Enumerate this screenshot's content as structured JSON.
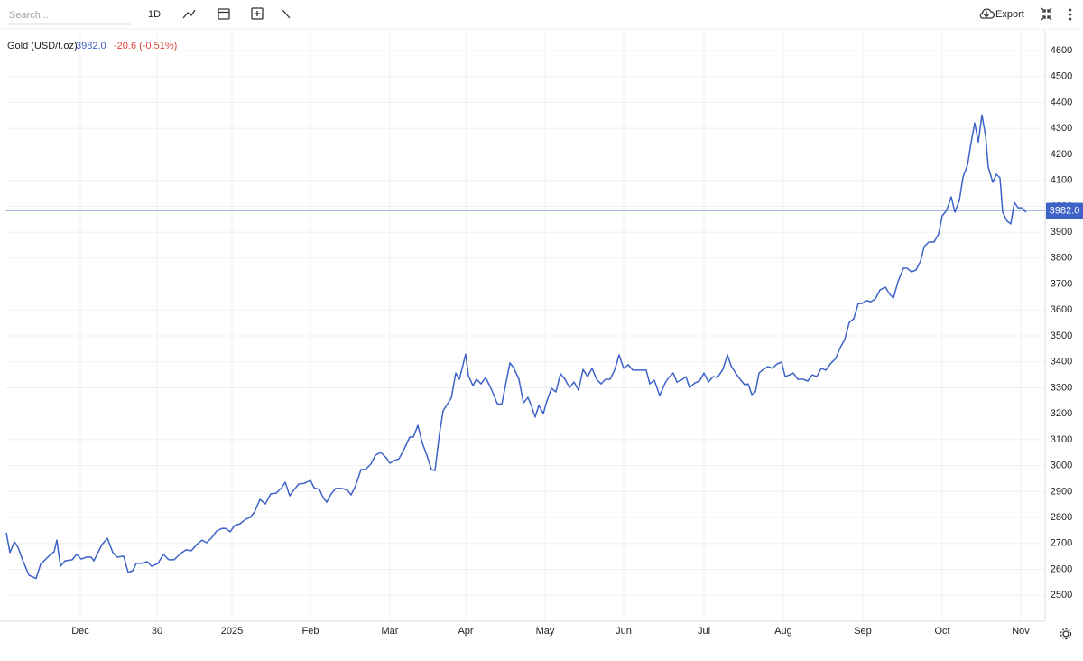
{
  "ui": {
    "search_placeholder": "Search...",
    "interval": "1D",
    "export": "Export",
    "change_label": "-20.6 (-0.51%)"
  },
  "chart_data": {
    "type": "line",
    "x": [
      0,
      4,
      9,
      13,
      18,
      25,
      33,
      38,
      48,
      53,
      56,
      60,
      65,
      73,
      78,
      83,
      89,
      94,
      97,
      101,
      106,
      112,
      118,
      123,
      130,
      135,
      140,
      144,
      150,
      156,
      161,
      168,
      174,
      180,
      186,
      193,
      199,
      205,
      211,
      217,
      222,
      228,
      233,
      239,
      243,
      248,
      253,
      259,
      265,
      270,
      275,
      281,
      287,
      293,
      299,
      305,
      309,
      314,
      319,
      324,
      330,
      337,
      341,
      347,
      351,
      355,
      360,
      365,
      372,
      378,
      382,
      387,
      393,
      398,
      404,
      409,
      415,
      421,
      425,
      430,
      435,
      441,
      447,
      451,
      456,
      461,
      466,
      471,
      475,
      480,
      484,
      489,
      493,
      498,
      502,
      509,
      512,
      517,
      521,
      526,
      531,
      536,
      540,
      544,
      549,
      553,
      558,
      562,
      568,
      573,
      578,
      582,
      586,
      590,
      595,
      599,
      604,
      609,
      614,
      619,
      624,
      629,
      634,
      639,
      644,
      649,
      654,
      659,
      664,
      669,
      674,
      679,
      684,
      689,
      694,
      699,
      704,
      709,
      713,
      718,
      724,
      730,
      734,
      739,
      743,
      748,
      753,
      757,
      763,
      768,
      773,
      778,
      783,
      788,
      794,
      799,
      803,
      808,
      813,
      818,
      822,
      826,
      830,
      834,
      839,
      844,
      849,
      854,
      859,
      863,
      868,
      872,
      877,
      883,
      888,
      893,
      898,
      903,
      908,
      913,
      919,
      924,
      929,
      934,
      939,
      944,
      948,
      953,
      958,
      963,
      968,
      974,
      979,
      983,
      988,
      994,
      998,
      1003,
      1008,
      1013,
      1017,
      1022,
      1028,
      1033,
      1037,
      1042,
      1047,
      1051,
      1056,
      1060,
      1065,
      1069,
      1073,
      1077,
      1081,
      1085,
      1088,
      1093,
      1097,
      1101,
      1104,
      1109,
      1113,
      1117,
      1121,
      1125,
      1130
    ],
    "series": [
      {
        "name": "Gold (USD/t.oz)",
        "color": "#3d62c8",
        "values": [
          2741,
          2665,
          2706,
          2685,
          2637,
          2578,
          2565,
          2620,
          2654,
          2668,
          2713,
          2612,
          2633,
          2637,
          2658,
          2640,
          2647,
          2647,
          2633,
          2661,
          2696,
          2720,
          2665,
          2647,
          2651,
          2588,
          2595,
          2623,
          2623,
          2630,
          2612,
          2623,
          2658,
          2637,
          2637,
          2661,
          2675,
          2672,
          2696,
          2713,
          2703,
          2724,
          2748,
          2758,
          2758,
          2745,
          2769,
          2776,
          2793,
          2800,
          2821,
          2870,
          2852,
          2891,
          2894,
          2915,
          2936,
          2884,
          2908,
          2929,
          2932,
          2943,
          2915,
          2908,
          2877,
          2859,
          2891,
          2912,
          2912,
          2905,
          2887,
          2922,
          2985,
          2985,
          3006,
          3040,
          3051,
          3030,
          3009,
          3020,
          3026,
          3065,
          3110,
          3110,
          3155,
          3086,
          3040,
          2985,
          2981,
          3124,
          3211,
          3239,
          3260,
          3357,
          3333,
          3430,
          3347,
          3308,
          3333,
          3315,
          3340,
          3305,
          3274,
          3239,
          3236,
          3308,
          3396,
          3378,
          3333,
          3242,
          3263,
          3228,
          3187,
          3232,
          3201,
          3249,
          3298,
          3284,
          3354,
          3333,
          3301,
          3322,
          3291,
          3371,
          3343,
          3375,
          3333,
          3315,
          3333,
          3333,
          3368,
          3427,
          3375,
          3389,
          3368,
          3368,
          3368,
          3368,
          3315,
          3329,
          3270,
          3319,
          3340,
          3357,
          3322,
          3329,
          3343,
          3301,
          3319,
          3326,
          3357,
          3322,
          3343,
          3340,
          3371,
          3427,
          3385,
          3357,
          3333,
          3312,
          3315,
          3274,
          3284,
          3357,
          3371,
          3382,
          3375,
          3392,
          3399,
          3343,
          3350,
          3357,
          3333,
          3333,
          3326,
          3350,
          3343,
          3375,
          3368,
          3392,
          3413,
          3455,
          3486,
          3552,
          3566,
          3625,
          3625,
          3636,
          3632,
          3643,
          3677,
          3688,
          3660,
          3646,
          3709,
          3761,
          3761,
          3747,
          3754,
          3789,
          3844,
          3862,
          3862,
          3893,
          3963,
          3984,
          4036,
          3977,
          4022,
          4112,
          4158,
          4245,
          4321,
          4247,
          4352,
          4272,
          4151,
          4092,
          4123,
          4109,
          3977,
          3942,
          3932,
          4015,
          3994,
          3994,
          3977
        ]
      }
    ],
    "reference_line": {
      "value": 3982,
      "label": "3982.0",
      "color": "#3d62c8"
    },
    "change_color": "#e0413a",
    "xlim": [
      -2,
      1151
    ],
    "xticks": [
      {
        "value": 82,
        "label": "Dec"
      },
      {
        "value": 167,
        "label": "30"
      },
      {
        "value": 250,
        "label": "2025"
      },
      {
        "value": 337,
        "label": "Feb"
      },
      {
        "value": 425,
        "label": "Mar"
      },
      {
        "value": 509,
        "label": "Apr"
      },
      {
        "value": 597,
        "label": "May"
      },
      {
        "value": 684,
        "label": "Jun"
      },
      {
        "value": 773,
        "label": "Jul"
      },
      {
        "value": 861,
        "label": "Aug"
      },
      {
        "value": 949,
        "label": "Sep"
      },
      {
        "value": 1037,
        "label": "Oct"
      },
      {
        "value": 1124,
        "label": "Nov"
      }
    ],
    "ylim": [
      2400,
      4680
    ],
    "yticks": [
      2500,
      2600,
      2700,
      2800,
      2900,
      3000,
      3100,
      3200,
      3300,
      3400,
      3500,
      3600,
      3700,
      3800,
      3900,
      4000,
      4100,
      4200,
      4300,
      4400,
      4500,
      4600
    ],
    "grid": true
  }
}
